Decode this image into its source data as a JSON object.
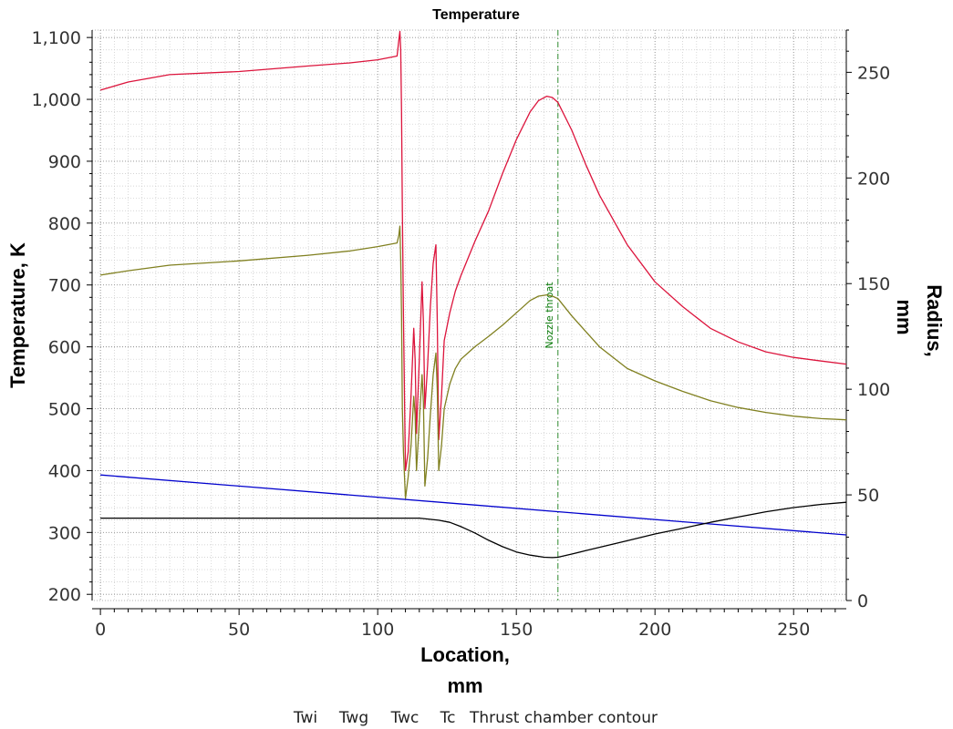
{
  "chart_data": {
    "type": "line",
    "title": "Temperature",
    "xlabel_lines": [
      "Location,",
      "mm"
    ],
    "ylabel_left": "Temperature, K",
    "ylabel_right_lines": [
      "Radius,",
      "mm"
    ],
    "xlim": [
      -3,
      269
    ],
    "ylim_left": [
      190,
      1112
    ],
    "ylim_right": [
      0,
      270
    ],
    "x_ticks": [
      0,
      50,
      100,
      150,
      200,
      250
    ],
    "x_tick_labels": [
      "0",
      "50",
      "100",
      "150",
      "200",
      "250"
    ],
    "y_left_ticks": [
      200,
      300,
      400,
      500,
      600,
      700,
      800,
      900,
      1000,
      1100
    ],
    "y_left_tick_labels": [
      "200",
      "300",
      "400",
      "500",
      "600",
      "700",
      "800",
      "900",
      "1,000",
      "1,100"
    ],
    "y_right_ticks": [
      0,
      50,
      100,
      150,
      200,
      250
    ],
    "y_right_tick_labels": [
      "0",
      "50",
      "100",
      "150",
      "200",
      "250"
    ],
    "grid": true,
    "legend_position": "bottom",
    "annotation": {
      "label": "Nozzle throat",
      "x": 165,
      "color": "#2e8b2e"
    },
    "series": [
      {
        "name": "Twi",
        "color": "#dc143c",
        "axis": "left",
        "x": [
          0,
          10,
          25,
          50,
          75,
          90,
          100,
          107,
          107.6,
          108,
          108.3,
          108.6,
          108.9,
          109.3,
          110,
          111,
          112,
          113,
          113.5,
          114,
          115,
          116,
          116.5,
          117,
          118,
          119,
          120,
          121,
          121.5,
          122,
          123,
          124,
          126,
          128,
          130,
          135,
          140,
          145,
          150,
          155,
          158,
          161,
          163,
          165,
          170,
          175,
          180,
          190,
          200,
          210,
          220,
          230,
          240,
          250,
          260,
          269
        ],
        "y": [
          1015,
          1028,
          1040,
          1045,
          1054,
          1059,
          1064,
          1070,
          1095,
          1110,
          1080,
          980,
          820,
          650,
          400,
          430,
          520,
          630,
          580,
          460,
          580,
          705,
          640,
          500,
          570,
          665,
          735,
          765,
          640,
          450,
          520,
          610,
          655,
          690,
          715,
          770,
          820,
          880,
          935,
          980,
          998,
          1005,
          1003,
          995,
          950,
          895,
          845,
          765,
          705,
          665,
          630,
          608,
          592,
          583,
          577,
          572
        ]
      },
      {
        "name": "Twg",
        "color": "#808020",
        "axis": "left",
        "x": [
          0,
          10,
          25,
          50,
          75,
          90,
          100,
          107,
          107.6,
          108,
          108.3,
          108.6,
          108.9,
          109.3,
          110,
          111,
          112,
          113,
          113.5,
          114,
          115,
          116,
          116.5,
          117,
          118,
          119,
          120,
          121,
          121.5,
          122,
          123,
          124,
          126,
          128,
          130,
          135,
          140,
          145,
          150,
          155,
          158,
          161,
          163,
          165,
          170,
          175,
          180,
          190,
          200,
          210,
          220,
          230,
          240,
          250,
          260,
          269
        ],
        "y": [
          716,
          723,
          732,
          739,
          748,
          755,
          762,
          768,
          780,
          795,
          740,
          650,
          500,
          430,
          355,
          390,
          440,
          520,
          490,
          400,
          480,
          555,
          510,
          375,
          420,
          490,
          555,
          590,
          530,
          400,
          440,
          500,
          540,
          565,
          580,
          600,
          617,
          635,
          655,
          675,
          682,
          684,
          682,
          678,
          650,
          625,
          600,
          565,
          545,
          528,
          513,
          502,
          494,
          488,
          484,
          482
        ]
      },
      {
        "name": "Twc",
        "color": "#0000cd",
        "axis": "left",
        "x": [
          0,
          269
        ],
        "y": [
          393,
          296
        ]
      },
      {
        "name": "Tc",
        "color": "#ffffff",
        "axis": "left",
        "x": [],
        "y": []
      },
      {
        "name": "Thrust chamber contour",
        "color": "#000000",
        "axis": "right",
        "x": [
          0,
          20,
          40,
          60,
          80,
          100,
          115,
          122,
          126,
          130,
          135,
          140,
          145,
          150,
          155,
          160,
          163,
          165,
          170,
          175,
          180,
          190,
          200,
          210,
          220,
          230,
          240,
          250,
          260,
          269
        ],
        "y": [
          39,
          39,
          39,
          39,
          39,
          39,
          39,
          38,
          37,
          35,
          32,
          28.5,
          25.5,
          23,
          21.5,
          20.5,
          20.3,
          20.5,
          22,
          23.6,
          25.2,
          28.3,
          31.5,
          34.2,
          37,
          39.5,
          42,
          44,
          45.5,
          46.5
        ]
      }
    ]
  }
}
